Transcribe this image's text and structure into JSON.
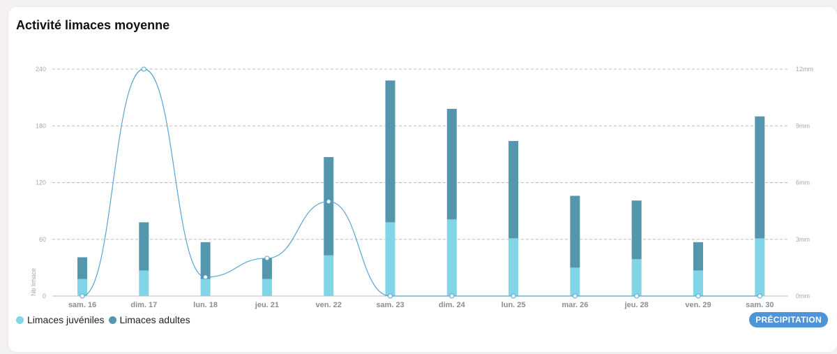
{
  "card": {
    "title": "Activité limaces moyenne",
    "button_label": "PRÉCIPITATION"
  },
  "colors": {
    "juvenile": "#82d5e6",
    "adult": "#5497ad",
    "line": "#5aa3d2",
    "button": "#4d94db",
    "grid": "#b8bcc2",
    "axis_text": "#a4a8ae",
    "category_text": "#8a8f96"
  },
  "chart_data": {
    "type": "bar",
    "stacked": true,
    "categories": [
      "sam. 16",
      "dim. 17",
      "lun. 18",
      "jeu. 21",
      "ven. 22",
      "sam. 23",
      "dim. 24",
      "lun. 25",
      "mar. 26",
      "jeu. 28",
      "ven. 29",
      "sam. 30"
    ],
    "series": [
      {
        "name": "Limaces juvéniles",
        "values": [
          18,
          27,
          18,
          18,
          43,
          78,
          81,
          61,
          30,
          39,
          27,
          61
        ]
      },
      {
        "name": "Limaces adultes",
        "values": [
          23,
          51,
          39,
          22,
          104,
          150,
          117,
          103,
          76,
          62,
          30,
          129
        ]
      }
    ],
    "line_series": {
      "name": "PRÉCIPITATION",
      "values": [
        0,
        12,
        1,
        2,
        5,
        0,
        0,
        0,
        0,
        0,
        0,
        0
      ]
    },
    "ylabel": "Nb limace",
    "ylim": [
      0,
      240
    ],
    "yticks": [
      "0",
      "60",
      "120",
      "180",
      "240"
    ],
    "y2lim": [
      0,
      12
    ],
    "y2ticks": [
      "0mm",
      "3mm",
      "6mm",
      "9mm",
      "12mm"
    ],
    "grid": true,
    "legend_position": "bottom-left"
  }
}
